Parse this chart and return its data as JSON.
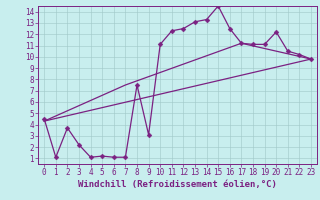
{
  "xlabel": "Windchill (Refroidissement éolien,°C)",
  "xlim": [
    -0.5,
    23.5
  ],
  "ylim": [
    0.5,
    14.5
  ],
  "xticks": [
    0,
    1,
    2,
    3,
    4,
    5,
    6,
    7,
    8,
    9,
    10,
    11,
    12,
    13,
    14,
    15,
    16,
    17,
    18,
    19,
    20,
    21,
    22,
    23
  ],
  "yticks": [
    1,
    2,
    3,
    4,
    5,
    6,
    7,
    8,
    9,
    10,
    11,
    12,
    13,
    14
  ],
  "background_color": "#c8eeee",
  "line_color": "#7b2182",
  "grid_color": "#a0c8c8",
  "zigzag_x": [
    0,
    1,
    2,
    3,
    4,
    5,
    6,
    7,
    8,
    9,
    10,
    11,
    12,
    13,
    14,
    15,
    16,
    17,
    18,
    19,
    20,
    21,
    22,
    23
  ],
  "zigzag_y": [
    4.5,
    1.1,
    3.7,
    2.2,
    1.1,
    1.2,
    1.1,
    1.1,
    7.5,
    3.1,
    11.1,
    12.3,
    12.5,
    13.1,
    13.3,
    14.5,
    12.5,
    11.2,
    11.1,
    11.1,
    12.2,
    10.5,
    10.2,
    9.8
  ],
  "trend1_x": [
    0,
    23
  ],
  "trend1_y": [
    4.3,
    9.8
  ],
  "trend2_x": [
    0,
    7,
    17,
    23
  ],
  "trend2_y": [
    4.3,
    7.5,
    11.2,
    9.8
  ],
  "markersize": 2.5,
  "linewidth": 0.9,
  "tick_fontsize": 5.5,
  "xlabel_fontsize": 6.5
}
